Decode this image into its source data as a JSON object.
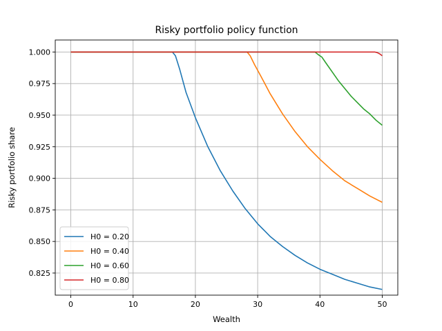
{
  "chart_data": {
    "type": "line",
    "title": "Risky portfolio policy function",
    "xlabel": "Wealth",
    "ylabel": "Risky portfolio share",
    "xlim": [
      -2.5,
      52.5
    ],
    "ylim": [
      0.8075,
      1.0095
    ],
    "xticks": [
      0,
      10,
      20,
      30,
      40,
      50
    ],
    "xtick_labels": [
      "0",
      "10",
      "20",
      "30",
      "40",
      "50"
    ],
    "yticks": [
      0.825,
      0.85,
      0.875,
      0.9,
      0.925,
      0.95,
      0.975,
      1.0
    ],
    "ytick_labels": [
      "0.825",
      "0.850",
      "0.875",
      "0.900",
      "0.925",
      "0.950",
      "0.975",
      "1.000"
    ],
    "grid": true,
    "legend_position": "lower-left",
    "series": [
      {
        "name": "H0 = 0.20",
        "color": "#1f77b4",
        "x": [
          0,
          16.3,
          16.8,
          17.5,
          18.5,
          20,
          22,
          24,
          26,
          28,
          30,
          32,
          34,
          36,
          38,
          40,
          42,
          44,
          46,
          48,
          50
        ],
        "y": [
          1.0,
          1.0,
          0.997,
          0.986,
          0.968,
          0.948,
          0.925,
          0.906,
          0.89,
          0.876,
          0.864,
          0.854,
          0.846,
          0.839,
          0.833,
          0.828,
          0.824,
          0.82,
          0.817,
          0.814,
          0.812
        ]
      },
      {
        "name": "H0 = 0.40",
        "color": "#ff7f0e",
        "x": [
          0,
          28.3,
          28.8,
          29.5,
          30.5,
          32,
          34,
          36,
          38,
          40,
          42,
          44,
          46,
          48,
          50
        ],
        "y": [
          1.0,
          1.0,
          0.997,
          0.99,
          0.981,
          0.967,
          0.951,
          0.937,
          0.925,
          0.915,
          0.906,
          0.898,
          0.892,
          0.886,
          0.881
        ]
      },
      {
        "name": "H0 = 0.60",
        "color": "#2ca02c",
        "x": [
          0,
          39.2,
          39.7,
          40.3,
          41,
          42,
          43,
          44,
          45,
          46,
          47,
          48,
          49,
          50
        ],
        "y": [
          1.0,
          1.0,
          0.998,
          0.996,
          0.991,
          0.984,
          0.977,
          0.971,
          0.965,
          0.96,
          0.955,
          0.951,
          0.946,
          0.942
        ]
      },
      {
        "name": "H0 = 0.80",
        "color": "#d62728",
        "x": [
          0,
          48.8,
          49.2,
          49.6,
          50
        ],
        "y": [
          1.0,
          1.0,
          0.9995,
          0.9985,
          0.997
        ]
      }
    ]
  }
}
